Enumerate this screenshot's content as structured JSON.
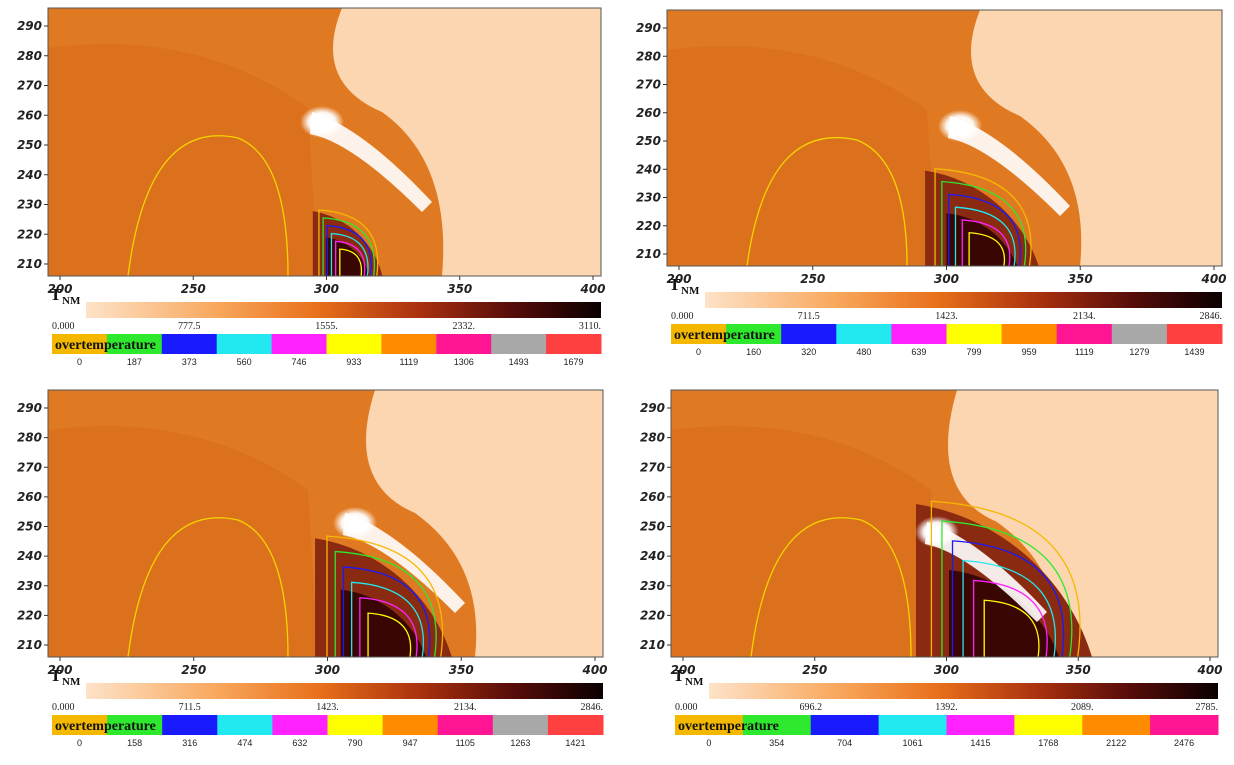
{
  "chart_data": [
    {
      "type": "heatmap",
      "colorbar_title": "T",
      "colorbar_subscript": "NM",
      "colorbar_ticks": [
        "0.000",
        "777.5",
        "1555.",
        "2332.",
        "3110."
      ],
      "legend_title": "overtemperature",
      "legend_colors": [
        "#f5b800",
        "#2de82d",
        "#1a1aff",
        "#22e8f0",
        "#ff22ff",
        "#ffff00",
        "#ff8c00",
        "#ff1493",
        "#a8a8a8",
        "#ff4040"
      ],
      "legend_ticks": [
        "0",
        "187",
        "373",
        "560",
        "746",
        "933",
        "1119",
        "1306",
        "1493",
        "1679"
      ],
      "x_ticks": [
        "200",
        "250",
        "300",
        "350",
        "400"
      ],
      "y_ticks": [
        "290",
        "280",
        "270",
        "260",
        "250",
        "240",
        "230",
        "220",
        "210"
      ]
    },
    {
      "type": "heatmap",
      "colorbar_title": "T",
      "colorbar_subscript": "NM",
      "colorbar_ticks": [
        "0.000",
        "711.5",
        "1423.",
        "2134.",
        "2846."
      ],
      "legend_title": "overtemperature",
      "legend_colors": [
        "#f5b800",
        "#2de82d",
        "#1a1aff",
        "#22e8f0",
        "#ff22ff",
        "#ffff00",
        "#ff8c00",
        "#ff1493",
        "#a8a8a8",
        "#ff4040"
      ],
      "legend_ticks": [
        "0",
        "160",
        "320",
        "480",
        "639",
        "799",
        "959",
        "1119",
        "1279",
        "1439"
      ],
      "x_ticks": [
        "200",
        "250",
        "300",
        "350",
        "400"
      ],
      "y_ticks": [
        "290",
        "280",
        "270",
        "260",
        "250",
        "240",
        "230",
        "220",
        "210"
      ]
    },
    {
      "type": "heatmap",
      "colorbar_title": "T",
      "colorbar_subscript": "NM",
      "colorbar_ticks": [
        "0.000",
        "711.5",
        "1423.",
        "2134.",
        "2846."
      ],
      "legend_title": "overtemperature",
      "legend_colors": [
        "#f5b800",
        "#2de82d",
        "#1a1aff",
        "#22e8f0",
        "#ff22ff",
        "#ffff00",
        "#ff8c00",
        "#ff1493",
        "#a8a8a8",
        "#ff4040"
      ],
      "legend_ticks": [
        "0",
        "158",
        "316",
        "474",
        "632",
        "790",
        "947",
        "1105",
        "1263",
        "1421"
      ],
      "x_ticks": [
        "200",
        "250",
        "300",
        "350",
        "400"
      ],
      "y_ticks": [
        "290",
        "280",
        "270",
        "260",
        "250",
        "240",
        "230",
        "220",
        "210"
      ]
    },
    {
      "type": "heatmap",
      "colorbar_title": "T",
      "colorbar_subscript": "NM",
      "colorbar_ticks": [
        "0.000",
        "696.2",
        "1392.",
        "2089.",
        "2785."
      ],
      "legend_title": "overtemperature",
      "legend_colors": [
        "#f5b800",
        "#2de82d",
        "#1a1aff",
        "#22e8f0",
        "#ff22ff",
        "#ffff00",
        "#ff8c00",
        "#ff1493"
      ],
      "legend_ticks": [
        "0",
        "354",
        "704",
        "1061",
        "1415",
        "1768",
        "2122",
        "2476"
      ],
      "x_ticks": [
        "200",
        "250",
        "300",
        "350",
        "400"
      ],
      "y_ticks": [
        "290",
        "280",
        "270",
        "260",
        "250",
        "240",
        "230",
        "220",
        "210"
      ]
    }
  ]
}
